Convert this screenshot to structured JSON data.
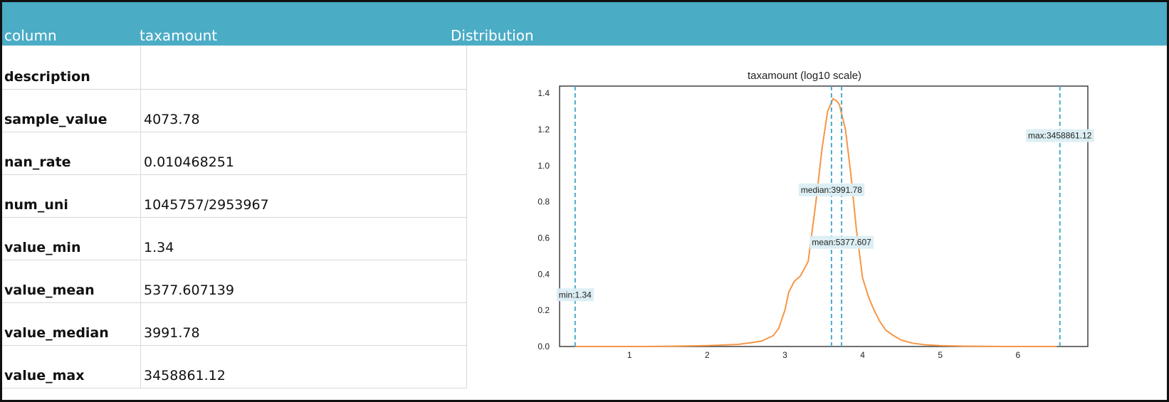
{
  "header": {
    "column_label": "column",
    "column_value": "taxamount",
    "distribution_label": "Distribution"
  },
  "rows": [
    {
      "label": "description",
      "value": ""
    },
    {
      "label": "sample_value",
      "value": "4073.78"
    },
    {
      "label": "nan_rate",
      "value": "0.010468251"
    },
    {
      "label": "num_uni",
      "value": "1045757/2953967"
    },
    {
      "label": "value_min",
      "value": "1.34"
    },
    {
      "label": "value_mean",
      "value": "5377.607139"
    },
    {
      "label": "value_median",
      "value": "3991.78"
    },
    {
      "label": "value_max",
      "value": "3458861.12"
    }
  ],
  "colors": {
    "header": "#4bacc6",
    "curve": "#f79646",
    "marker_line": "#4bacc6",
    "marker_label_bg": "#dbeef3"
  },
  "chart_data": {
    "type": "line",
    "title": "taxamount (log10 scale)",
    "xlabel": "",
    "ylabel": "",
    "xlim": [
      0.1,
      6.9
    ],
    "ylim": [
      0,
      1.44
    ],
    "x_ticks": [
      "1",
      "2",
      "3",
      "4",
      "5",
      "6"
    ],
    "y_ticks": [
      "0.0",
      "0.2",
      "0.4",
      "0.6",
      "0.8",
      "1.0",
      "1.2",
      "1.4"
    ],
    "grid": false,
    "series": [
      {
        "x": [
          0.3,
          0.8,
          1.2,
          1.6,
          2.0,
          2.2,
          2.4,
          2.55,
          2.7,
          2.85,
          2.92,
          3.0,
          3.05,
          3.12,
          3.2,
          3.3,
          3.4,
          3.48,
          3.55,
          3.62,
          3.66,
          3.7,
          3.78,
          3.85,
          3.92,
          4.0,
          4.08,
          4.15,
          4.22,
          4.3,
          4.4,
          4.5,
          4.65,
          4.8,
          5.0,
          5.3,
          5.8,
          6.5
        ],
        "y": [
          0.0,
          0.0,
          0.0,
          0.002,
          0.005,
          0.008,
          0.012,
          0.02,
          0.03,
          0.06,
          0.1,
          0.2,
          0.3,
          0.36,
          0.39,
          0.47,
          0.8,
          1.1,
          1.3,
          1.37,
          1.36,
          1.34,
          1.2,
          0.95,
          0.65,
          0.38,
          0.27,
          0.2,
          0.14,
          0.09,
          0.06,
          0.035,
          0.018,
          0.01,
          0.005,
          0.002,
          0.0,
          0.0
        ]
      }
    ],
    "markers": [
      {
        "label": "min:1.34",
        "x": 0.3,
        "label_y": 0.29
      },
      {
        "label": "median:3991.78",
        "x": 3.6,
        "label_y": 0.87
      },
      {
        "label": "mean:5377.607",
        "x": 3.73,
        "label_y": 0.58
      },
      {
        "label": "max:3458861.12",
        "x": 6.54,
        "label_y": 1.17
      }
    ]
  }
}
